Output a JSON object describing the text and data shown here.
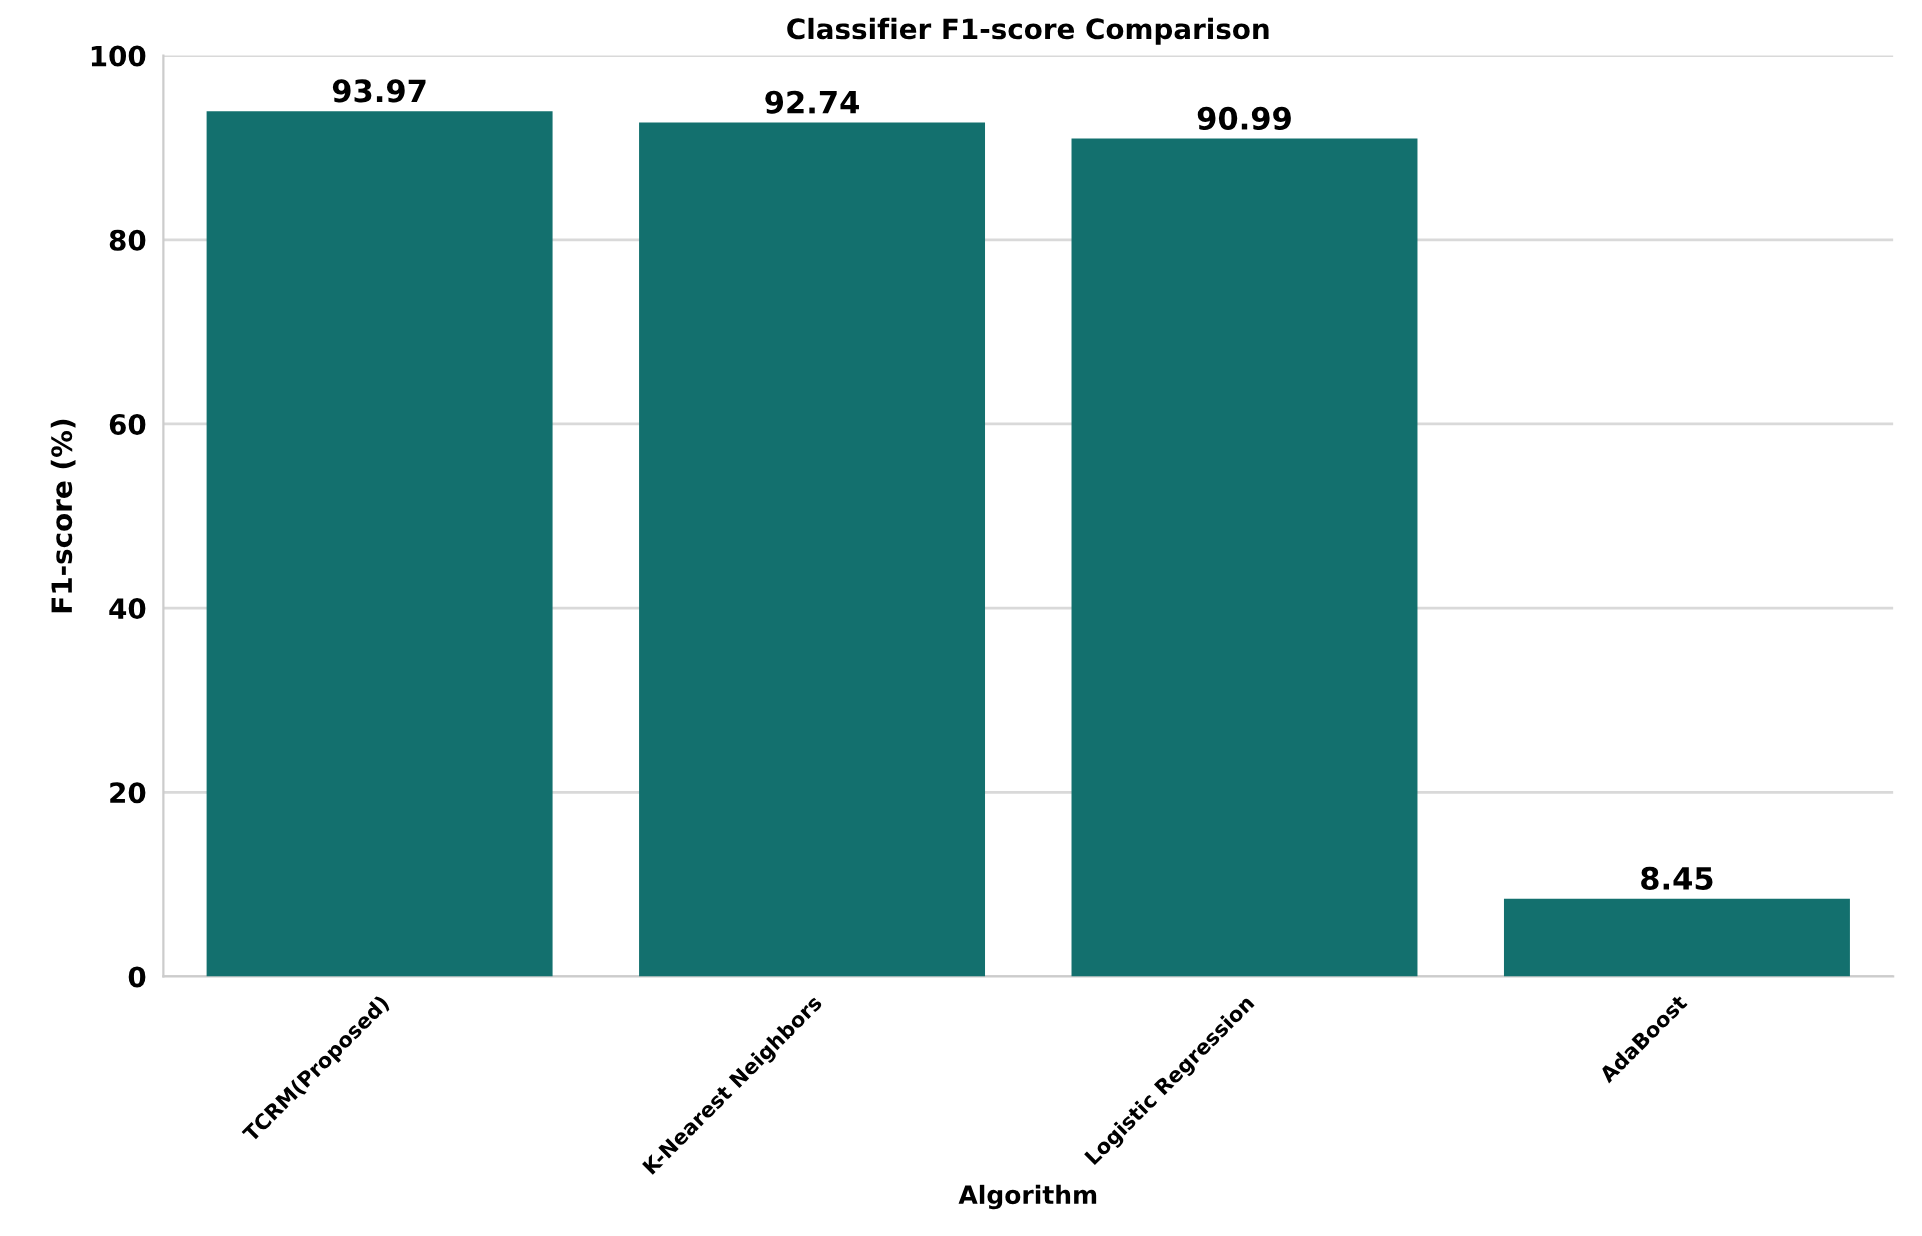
{
  "chart_data": {
    "type": "bar",
    "title": "Classifier F1-score Comparison",
    "xlabel": "Algorithm",
    "ylabel": "F1-score (%)",
    "categories": [
      "TCRM(Proposed)",
      "K-Nearest Neighbors",
      "Logistic Regression",
      "AdaBoost"
    ],
    "values": [
      93.97,
      92.74,
      90.99,
      8.45
    ],
    "color": "#13706e",
    "ylim": [
      0,
      100
    ],
    "yticks": [
      0,
      20,
      40,
      60,
      80,
      100
    ],
    "grid": "y",
    "data_labels": true
  }
}
